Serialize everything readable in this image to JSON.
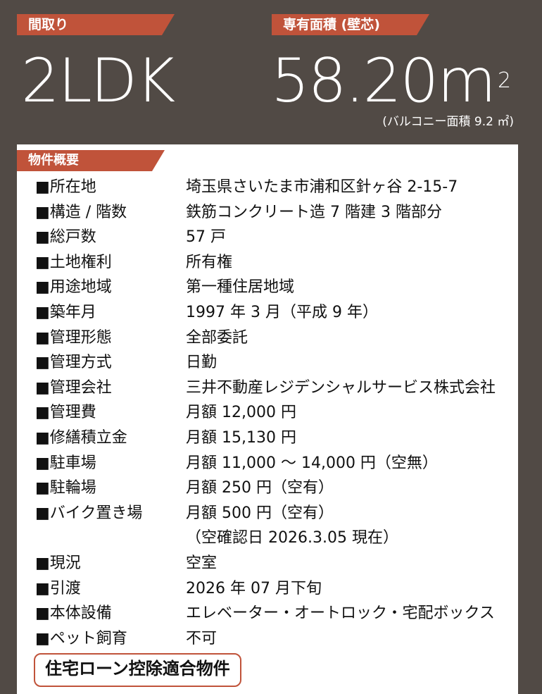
{
  "header": {
    "layout_label": "間取り",
    "layout_value": "2LDK",
    "area_label": "専有面積 (壁芯)",
    "area_value": "58.20m",
    "area_unit_sup": "2",
    "balcony": "(バルコニー面積 9.2 ㎡)"
  },
  "overview": {
    "title": "物件概要",
    "rows": [
      {
        "label": "■所在地",
        "value": "埼玉県さいたま市浦和区針ヶ谷 2-15-7"
      },
      {
        "label": "■構造 / 階数",
        "value": "鉄筋コンクリート造 7 階建 3 階部分"
      },
      {
        "label": "■総戸数",
        "value": "57 戸"
      },
      {
        "label": "■土地権利",
        "value": "所有権"
      },
      {
        "label": "■用途地域",
        "value": "第一種住居地域"
      },
      {
        "label": "■築年月",
        "value": "1997 年 3 月（平成 9 年）"
      },
      {
        "label": "■管理形態",
        "value": "全部委託"
      },
      {
        "label": "■管理方式",
        "value": "日勤"
      },
      {
        "label": "■管理会社",
        "value": "三井不動産レジデンシャルサービス株式会社"
      },
      {
        "label": "■管理費",
        "value": "月額 12,000 円"
      },
      {
        "label": "■修繕積立金",
        "value": "月額 15,130 円"
      },
      {
        "label": "■駐車場",
        "value": "月額 11,000 ～ 14,000 円（空無）"
      },
      {
        "label": "■駐輪場",
        "value": "月額 250 円（空有）"
      },
      {
        "label": "■バイク置き場",
        "value": "月額 500 円（空有）"
      },
      {
        "label": "",
        "value": "（空確認日 2026.3.05 現在）"
      },
      {
        "label": "■現況",
        "value": "空室"
      },
      {
        "label": "■引渡",
        "value": "2026 年 07 月下旬"
      },
      {
        "label": "■本体設備",
        "value": "エレベーター・オートロック・宅配ボックス"
      },
      {
        "label": "■ペット飼育",
        "value": "不可"
      }
    ],
    "loan_badge": "住宅ローン控除適合物件"
  },
  "colors": {
    "background": "#514a45",
    "accent": "#c0533a",
    "panel": "#ffffff"
  }
}
